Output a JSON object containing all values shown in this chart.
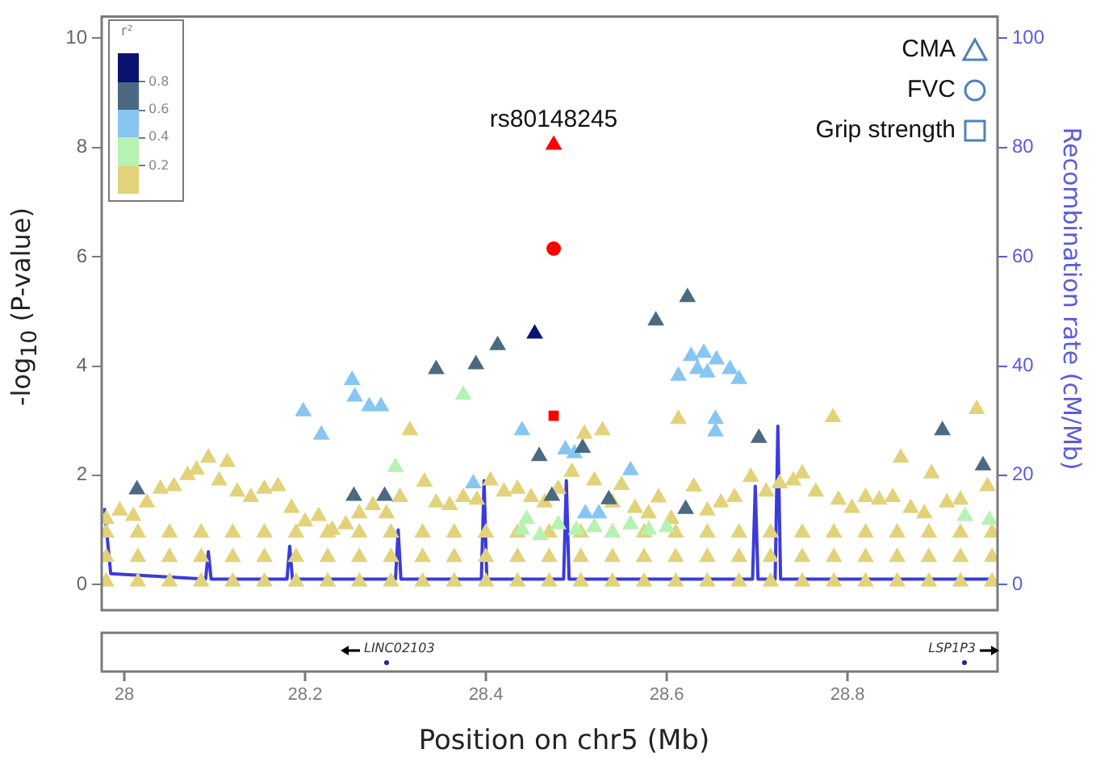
{
  "chart_data": {
    "type": "scatter",
    "xlabel": "Position on chr5 (Mb)",
    "ylabel": "-log$_{10}$ (P-value)",
    "y2label": "Recombination rate (cM/Mb)",
    "xlim": [
      27.975,
      28.966
    ],
    "xticks": [
      28,
      28.2,
      28.4,
      28.6,
      28.8
    ],
    "ylim": [
      -0.47,
      10.4
    ],
    "yticks": [
      0,
      2,
      4,
      6,
      8,
      10
    ],
    "y2lim": [
      -4.7,
      104
    ],
    "y2ticks": [
      0,
      20,
      40,
      60,
      80,
      100
    ],
    "legend": "top right",
    "grid": false,
    "annotations": [
      {
        "text": "rs80148245",
        "x": 28.475,
        "y": 8.05
      },
      "LINC02103",
      "LSP1P3",
      "r²",
      "0.8",
      "0.6",
      "0.4",
      "0.2"
    ],
    "series": [
      {
        "name": "CMA",
        "marker": "triangle",
        "x": [
          27.98,
          27.995,
          28.01,
          28.025,
          28.04,
          28.055,
          28.07,
          28.08,
          28.093,
          28.105,
          28.114,
          28.125,
          28.14,
          28.155,
          28.17,
          28.185,
          28.2,
          28.215,
          28.23,
          28.245,
          28.26,
          28.275,
          28.29,
          28.305,
          28.316,
          28.332,
          28.345,
          28.36,
          28.375,
          28.39,
          28.405,
          28.42,
          28.435,
          28.45,
          28.465,
          28.48,
          28.495,
          28.509,
          28.52,
          28.529,
          28.54,
          28.55,
          28.565,
          28.58,
          28.591,
          28.605,
          28.613,
          28.63,
          28.645,
          28.66,
          28.675,
          28.693,
          28.71,
          28.725,
          28.74,
          28.75,
          28.765,
          28.784,
          28.79,
          28.805,
          28.82,
          28.835,
          28.85,
          28.859,
          28.87,
          28.885,
          28.893,
          28.91,
          28.925,
          28.943,
          28.955,
          27.98,
          28.015,
          28.05,
          28.085,
          28.12,
          28.155,
          28.19,
          28.225,
          28.26,
          28.295,
          28.33,
          28.365,
          28.4,
          28.435,
          28.47,
          28.505,
          28.54,
          28.575,
          28.61,
          28.645,
          28.68,
          28.715,
          28.75,
          28.785,
          28.82,
          28.855,
          28.89,
          28.925,
          28.96,
          27.98,
          28.015,
          28.05,
          28.085,
          28.12,
          28.155,
          28.19,
          28.225,
          28.26,
          28.295,
          28.33,
          28.365,
          28.4,
          28.435,
          28.47,
          28.505,
          28.54,
          28.575,
          28.61,
          28.645,
          28.68,
          28.715,
          28.75,
          28.785,
          28.82,
          28.855,
          28.89,
          28.925,
          28.96,
          27.98,
          28.015,
          28.05,
          28.085,
          28.12,
          28.155,
          28.19,
          28.225,
          28.26,
          28.295,
          28.33,
          28.365,
          28.4,
          28.435,
          28.47,
          28.505,
          28.54,
          28.575,
          28.61,
          28.645,
          28.68,
          28.715,
          28.75,
          28.785,
          28.82,
          28.855,
          28.89,
          28.925,
          28.96,
          28.375,
          28.3,
          28.44,
          28.445,
          28.46,
          28.48,
          28.5,
          28.52,
          28.54,
          28.56,
          28.58,
          28.6,
          28.93,
          28.957,
          28.613,
          28.627,
          28.641,
          28.655,
          28.67,
          28.68,
          28.634,
          28.645,
          28.654,
          28.654,
          28.252,
          28.255,
          28.271,
          28.284,
          28.198,
          28.218,
          28.44,
          28.386,
          28.488,
          28.498,
          28.56,
          28.51,
          28.525,
          28.413,
          28.389,
          28.345,
          28.623,
          28.588,
          28.014,
          28.459,
          28.507,
          28.702,
          28.905,
          28.95,
          28.536,
          28.621,
          28.473,
          28.254,
          28.288,
          28.454,
          28.475
        ],
        "values": [
          1.2,
          1.35,
          1.25,
          1.5,
          1.75,
          1.8,
          2.0,
          2.1,
          2.32,
          1.9,
          2.24,
          1.7,
          1.6,
          1.75,
          1.8,
          1.4,
          1.15,
          1.25,
          1.0,
          1.1,
          1.3,
          1.45,
          1.3,
          1.6,
          2.82,
          1.88,
          1.5,
          1.45,
          1.6,
          1.55,
          1.9,
          1.7,
          1.75,
          1.6,
          1.5,
          1.75,
          2.06,
          2.76,
          1.9,
          2.82,
          1.5,
          1.82,
          1.4,
          1.3,
          1.59,
          1.2,
          3.03,
          1.79,
          1.35,
          1.5,
          1.6,
          1.97,
          1.7,
          1.85,
          1.9,
          2.03,
          1.7,
          3.06,
          1.55,
          1.4,
          1.6,
          1.55,
          1.6,
          2.32,
          1.4,
          1.3,
          2.03,
          1.5,
          1.55,
          3.21,
          1.8,
          0.95,
          0.95,
          0.95,
          0.95,
          0.95,
          0.95,
          0.95,
          0.95,
          0.95,
          0.95,
          0.95,
          0.95,
          0.95,
          0.95,
          0.95,
          0.95,
          0.95,
          0.95,
          0.95,
          0.95,
          0.95,
          0.95,
          0.95,
          0.95,
          0.95,
          0.95,
          0.95,
          0.95,
          0.95,
          0.5,
          0.5,
          0.5,
          0.5,
          0.5,
          0.5,
          0.5,
          0.5,
          0.5,
          0.5,
          0.5,
          0.5,
          0.5,
          0.5,
          0.5,
          0.5,
          0.5,
          0.5,
          0.5,
          0.5,
          0.5,
          0.5,
          0.5,
          0.5,
          0.5,
          0.5,
          0.5,
          0.5,
          0.5,
          0.05,
          0.05,
          0.05,
          0.05,
          0.05,
          0.05,
          0.05,
          0.05,
          0.05,
          0.05,
          0.05,
          0.05,
          0.05,
          0.05,
          0.05,
          0.05,
          0.05,
          0.05,
          0.05,
          0.05,
          0.05,
          0.05,
          0.05,
          0.05,
          0.05,
          0.05,
          0.05,
          0.05,
          0.05,
          3.47,
          2.15,
          1.0,
          1.2,
          0.9,
          1.1,
          1.0,
          1.05,
          0.95,
          1.1,
          1.0,
          1.05,
          1.25,
          1.18,
          3.82,
          4.18,
          4.24,
          4.12,
          3.94,
          3.76,
          3.94,
          3.88,
          3.03,
          2.8,
          3.74,
          3.44,
          3.26,
          3.26,
          3.17,
          2.74,
          2.82,
          1.85,
          2.47,
          2.4,
          2.09,
          1.3,
          1.3,
          4.38,
          4.03,
          3.94,
          5.26,
          4.83,
          1.74,
          2.35,
          2.5,
          2.68,
          2.82,
          2.18,
          1.56,
          1.38,
          1.62,
          1.62,
          1.62,
          4.59,
          8.05
        ],
        "colors": [
          "#e2d27a",
          "#e2d27a",
          "#e2d27a",
          "#e2d27a",
          "#e2d27a",
          "#e2d27a",
          "#e2d27a",
          "#e2d27a",
          "#e2d27a",
          "#e2d27a",
          "#e2d27a",
          "#e2d27a",
          "#e2d27a",
          "#e2d27a",
          "#e2d27a",
          "#e2d27a",
          "#e2d27a",
          "#e2d27a",
          "#e2d27a",
          "#e2d27a",
          "#e2d27a",
          "#e2d27a",
          "#e2d27a",
          "#e2d27a",
          "#e2d27a",
          "#e2d27a",
          "#e2d27a",
          "#e2d27a",
          "#e2d27a",
          "#e2d27a",
          "#e2d27a",
          "#e2d27a",
          "#e2d27a",
          "#e2d27a",
          "#e2d27a",
          "#e2d27a",
          "#e2d27a",
          "#e2d27a",
          "#e2d27a",
          "#e2d27a",
          "#e2d27a",
          "#e2d27a",
          "#e2d27a",
          "#e2d27a",
          "#e2d27a",
          "#e2d27a",
          "#e2d27a",
          "#e2d27a",
          "#e2d27a",
          "#e2d27a",
          "#e2d27a",
          "#e2d27a",
          "#e2d27a",
          "#e2d27a",
          "#e2d27a",
          "#e2d27a",
          "#e2d27a",
          "#e2d27a",
          "#e2d27a",
          "#e2d27a",
          "#e2d27a",
          "#e2d27a",
          "#e2d27a",
          "#e2d27a",
          "#e2d27a",
          "#e2d27a",
          "#e2d27a",
          "#e2d27a",
          "#e2d27a",
          "#e2d27a",
          "#e2d27a",
          "#e2d27a",
          "#e2d27a",
          "#e2d27a",
          "#e2d27a",
          "#e2d27a",
          "#e2d27a",
          "#e2d27a",
          "#e2d27a",
          "#e2d27a",
          "#e2d27a",
          "#e2d27a",
          "#e2d27a",
          "#e2d27a",
          "#e2d27a",
          "#e2d27a",
          "#e2d27a",
          "#e2d27a",
          "#e2d27a",
          "#e2d27a",
          "#e2d27a",
          "#e2d27a",
          "#e2d27a",
          "#e2d27a",
          "#e2d27a",
          "#e2d27a",
          "#e2d27a",
          "#e2d27a",
          "#e2d27a",
          "#e2d27a",
          "#e2d27a",
          "#e2d27a",
          "#e2d27a",
          "#e2d27a",
          "#e2d27a",
          "#e2d27a",
          "#e2d27a",
          "#e2d27a",
          "#e2d27a",
          "#e2d27a",
          "#e2d27a",
          "#e2d27a",
          "#e2d27a",
          "#e2d27a",
          "#e2d27a",
          "#e2d27a",
          "#e2d27a",
          "#e2d27a",
          "#e2d27a",
          "#e2d27a",
          "#e2d27a",
          "#e2d27a",
          "#e2d27a",
          "#e2d27a",
          "#e2d27a",
          "#e2d27a",
          "#e2d27a",
          "#e2d27a",
          "#e2d27a",
          "#e2d27a",
          "#e2d27a",
          "#e2d27a",
          "#e2d27a",
          "#e2d27a",
          "#e2d27a",
          "#e2d27a",
          "#e2d27a",
          "#e2d27a",
          "#e2d27a",
          "#e2d27a",
          "#e2d27a",
          "#e2d27a",
          "#e2d27a",
          "#e2d27a",
          "#e2d27a",
          "#e2d27a",
          "#e2d27a",
          "#e2d27a",
          "#e2d27a",
          "#e2d27a",
          "#e2d27a",
          "#e2d27a",
          "#e2d27a",
          "#e2d27a",
          "#e2d27a",
          "#e2d27a",
          "#e2d27a",
          "#e2d27a",
          "#b6f2b2",
          "#b6f2b2",
          "#b6f2b2",
          "#b6f2b2",
          "#b6f2b2",
          "#b6f2b2",
          "#b6f2b2",
          "#b6f2b2",
          "#b6f2b2",
          "#b6f2b2",
          "#b6f2b2",
          "#b6f2b2",
          "#b6f2b2",
          "#b6f2b2",
          "#87c6f2",
          "#87c6f2",
          "#87c6f2",
          "#87c6f2",
          "#87c6f2",
          "#87c6f2",
          "#87c6f2",
          "#87c6f2",
          "#87c6f2",
          "#87c6f2",
          "#87c6f2",
          "#87c6f2",
          "#87c6f2",
          "#87c6f2",
          "#87c6f2",
          "#87c6f2",
          "#87c6f2",
          "#87c6f2",
          "#87c6f2",
          "#87c6f2",
          "#87c6f2",
          "#87c6f2",
          "#87c6f2",
          "#4c6982",
          "#4c6982",
          "#4c6982",
          "#4c6982",
          "#4c6982",
          "#4c6982",
          "#4c6982",
          "#4c6982",
          "#4c6982",
          "#4c6982",
          "#4c6982",
          "#4c6982",
          "#4c6982",
          "#4c6982",
          "#4c6982",
          "#4c6982",
          "#0a1470",
          "#ff0000"
        ]
      },
      {
        "name": "FVC",
        "color": "#ff0000",
        "marker": "circle",
        "x": [
          28.475
        ],
        "values": [
          6.15
        ]
      },
      {
        "name": "Grip strength",
        "color": "#ff0000",
        "marker": "square",
        "x": [
          28.475
        ],
        "values": [
          3.09
        ]
      },
      {
        "type": "line",
        "axis": "y2",
        "color": "#3b3bdc",
        "x": [
          27.978,
          27.985,
          28.09,
          28.093,
          28.096,
          28.18,
          28.183,
          28.186,
          28.3,
          28.303,
          28.306,
          28.395,
          28.398,
          28.401,
          28.486,
          28.489,
          28.492,
          28.695,
          28.698,
          28.701,
          28.72,
          28.723,
          28.726,
          28.96
        ],
        "values": [
          14,
          2,
          1,
          6,
          1,
          1,
          7,
          1,
          1,
          10,
          1,
          1,
          19,
          1,
          1,
          19,
          1,
          1,
          18,
          1,
          1,
          29,
          1,
          1
        ]
      }
    ]
  }
}
